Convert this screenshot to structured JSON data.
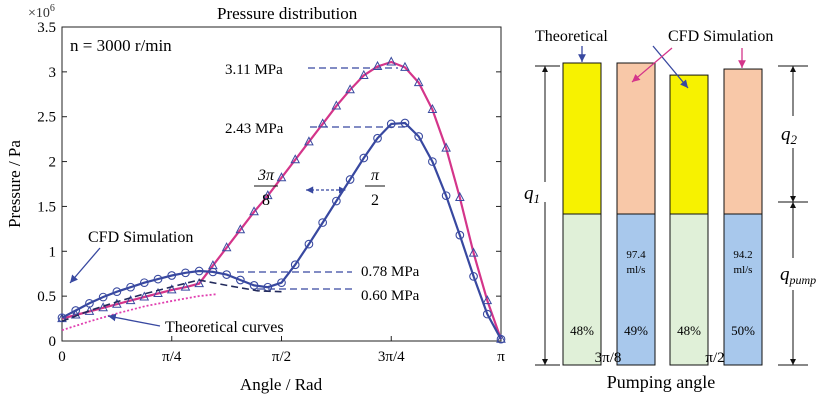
{
  "chart_data": [
    {
      "type": "line",
      "title": "Pressure distribution",
      "xlabel": "Angle / Rad",
      "ylabel": "Pressure / Pa",
      "y_multiplier": "×10",
      "y_multiplier_exp": "6",
      "xlim": [
        0,
        3.1416
      ],
      "ylim": [
        0,
        3.5
      ],
      "x_ticks": [
        {
          "value": 0,
          "label": "0"
        },
        {
          "value": 0.7854,
          "label": "π/4"
        },
        {
          "value": 1.5708,
          "label": "π/2"
        },
        {
          "value": 2.3562,
          "label": "3π/4"
        },
        {
          "value": 3.1416,
          "label": "π"
        }
      ],
      "y_ticks": [
        {
          "value": 0,
          "label": "0"
        },
        {
          "value": 0.5,
          "label": "0.5"
        },
        {
          "value": 1,
          "label": "1"
        },
        {
          "value": 1.5,
          "label": "1.5"
        },
        {
          "value": 2,
          "label": "2"
        },
        {
          "value": 2.5,
          "label": "2.5"
        },
        {
          "value": 3,
          "label": "3"
        },
        {
          "value": 3.5,
          "label": "3.5"
        }
      ],
      "grid": false,
      "colors": {
        "pink": "#d4358a",
        "blue": "#3848a0",
        "dark": "#222a5c",
        "pinkdot": "#e040b0"
      },
      "series": [
        {
          "name": "",
          "style": "pink-triangles",
          "x": [
            0,
            0.0982,
            0.1963,
            0.2945,
            0.3927,
            0.4909,
            0.589,
            0.6872,
            0.7854,
            0.8836,
            0.9817,
            1.0799,
            1.1781,
            1.2763,
            1.3744,
            1.4726,
            1.5708,
            1.669,
            1.7671,
            1.8653,
            1.9635,
            2.0617,
            2.1598,
            2.258,
            2.3562,
            2.4544,
            2.5525,
            2.6507,
            2.7489,
            2.8471,
            2.9452,
            3.0434,
            3.1416
          ],
          "y": [
            0.25,
            0.29,
            0.33,
            0.37,
            0.41,
            0.45,
            0.49,
            0.53,
            0.57,
            0.6,
            0.64,
            0.84,
            1.04,
            1.24,
            1.44,
            1.62,
            1.82,
            2.02,
            2.22,
            2.42,
            2.62,
            2.8,
            2.96,
            3.06,
            3.11,
            3.05,
            2.88,
            2.58,
            2.15,
            1.6,
            0.98,
            0.45,
            0.02
          ]
        },
        {
          "name": "",
          "style": "blue-circles",
          "x": [
            0,
            0.0982,
            0.1963,
            0.2945,
            0.3927,
            0.4909,
            0.589,
            0.6872,
            0.7854,
            0.8836,
            0.9817,
            1.0799,
            1.1781,
            1.2763,
            1.3744,
            1.4726,
            1.5708,
            1.669,
            1.7671,
            1.8653,
            1.9635,
            2.0617,
            2.1598,
            2.258,
            2.3562,
            2.4544,
            2.5525,
            2.6507,
            2.7489,
            2.8471,
            2.9452,
            3.0434,
            3.1416
          ],
          "y": [
            0.26,
            0.34,
            0.42,
            0.49,
            0.55,
            0.6,
            0.65,
            0.69,
            0.73,
            0.76,
            0.78,
            0.77,
            0.74,
            0.68,
            0.62,
            0.6,
            0.65,
            0.85,
            1.08,
            1.32,
            1.56,
            1.8,
            2.04,
            2.26,
            2.42,
            2.43,
            2.28,
            2.0,
            1.62,
            1.18,
            0.72,
            0.3,
            0.02
          ]
        },
        {
          "name": "",
          "style": "dark-dash",
          "x": [
            0,
            0.2,
            0.4,
            0.6,
            0.8,
            0.98,
            1.18,
            1.4,
            1.5708
          ],
          "y": [
            0.22,
            0.34,
            0.44,
            0.53,
            0.61,
            0.68,
            0.62,
            0.56,
            0.55
          ]
        },
        {
          "name": "",
          "style": "pink-dot",
          "x": [
            0,
            0.2,
            0.4,
            0.6,
            0.8,
            0.98,
            1.1
          ],
          "y": [
            0.12,
            0.22,
            0.31,
            0.39,
            0.45,
            0.5,
            0.52
          ]
        }
      ],
      "annotations": {
        "speed": "n = 3000 r/min",
        "peak_pink": "3.11 MPa",
        "peak_blue": "2.43 MPa",
        "level_078": "0.78 MPa",
        "level_060": "0.60 MPa",
        "frac_num": "3π",
        "frac_den": "8",
        "frac2_num": "π",
        "frac2_den": "2",
        "cfd": "CFD Simulation",
        "theoretical": "Theoretical curves"
      }
    },
    {
      "type": "bar",
      "title": "",
      "xlabel": "Pumping angle",
      "x_ticks": [
        "3π/8",
        "π/2"
      ],
      "legend_theoretical": "Theoretical",
      "legend_cfd": "CFD Simulation",
      "q1": "q",
      "q1_sub": "1",
      "q2": "q",
      "q2_sub": "2",
      "qpump": "q",
      "qpump_sub": "pump",
      "colors": {
        "theoretical_top": "#f7f200",
        "theoretical_bottom": "#e0f0d8",
        "cfd_top": "#f8c8a8",
        "cfd_bottom": "#a8c8ec"
      },
      "bars": [
        {
          "kind": "theoretical",
          "total": 1.0,
          "pump_fraction": 0.48,
          "label": "48%",
          "flow": ""
        },
        {
          "kind": "cfd",
          "total": 1.0,
          "pump_fraction": 0.49,
          "label": "49%",
          "flow": "97.4 ml/s"
        },
        {
          "kind": "theoretical",
          "total": 0.96,
          "pump_fraction": 0.48,
          "label": "48%",
          "flow": ""
        },
        {
          "kind": "cfd",
          "total": 0.98,
          "pump_fraction": 0.5,
          "label": "50%",
          "flow": "94.2 ml/s"
        }
      ],
      "flow_unit_lines": [
        [
          "97.4",
          "ml/s"
        ],
        [
          "94.2",
          "ml/s"
        ]
      ]
    }
  ]
}
